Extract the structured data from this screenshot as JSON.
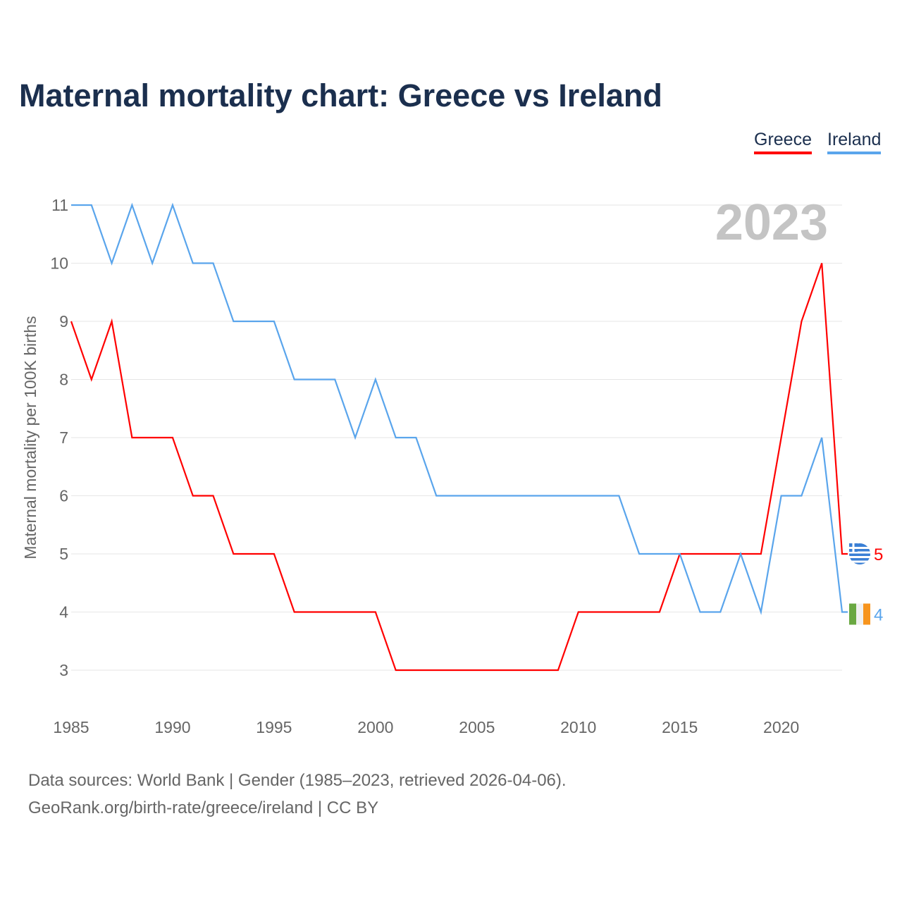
{
  "title": "Maternal mortality chart: Greece vs Ireland",
  "year_label": "2023",
  "source_line1": "Data sources: World Bank | Gender (1985–2023, retrieved 2026-04-06).",
  "source_line2": "GeoRank.org/birth-rate/greece/ireland | CC BY",
  "chart_data": {
    "type": "line",
    "title": "Maternal mortality chart: Greece vs Ireland",
    "xlabel": "",
    "ylabel": "Maternal mortality per 100K births",
    "xlim": [
      1985,
      2023
    ],
    "ylim": [
      3,
      11
    ],
    "xticks": [
      1985,
      1990,
      1995,
      2000,
      2005,
      2010,
      2015,
      2020
    ],
    "yticks": [
      3,
      4,
      5,
      6,
      7,
      8,
      9,
      10,
      11
    ],
    "legend": "top-right",
    "grid": true,
    "x": [
      1985,
      1986,
      1987,
      1988,
      1989,
      1990,
      1991,
      1992,
      1993,
      1994,
      1995,
      1996,
      1997,
      1998,
      1999,
      2000,
      2001,
      2002,
      2003,
      2004,
      2005,
      2006,
      2007,
      2008,
      2009,
      2010,
      2011,
      2012,
      2013,
      2014,
      2015,
      2016,
      2017,
      2018,
      2019,
      2020,
      2021,
      2022,
      2023
    ],
    "series": [
      {
        "name": "Greece",
        "color": "#ff0000",
        "end_label": "5",
        "values": [
          9,
          8,
          9,
          7,
          7,
          7,
          6,
          6,
          5,
          5,
          5,
          4,
          4,
          4,
          4,
          4,
          3,
          3,
          3,
          3,
          3,
          3,
          3,
          3,
          3,
          4,
          4,
          4,
          4,
          4,
          5,
          5,
          5,
          5,
          5,
          7,
          9,
          10,
          5
        ]
      },
      {
        "name": "Ireland",
        "color": "#5aa5ec",
        "end_label": "4",
        "values": [
          11,
          11,
          10,
          11,
          10,
          11,
          10,
          10,
          9,
          9,
          9,
          8,
          8,
          8,
          7,
          8,
          7,
          7,
          6,
          6,
          6,
          6,
          6,
          6,
          6,
          6,
          6,
          6,
          5,
          5,
          5,
          4,
          4,
          5,
          4,
          6,
          6,
          7,
          4
        ]
      }
    ]
  }
}
